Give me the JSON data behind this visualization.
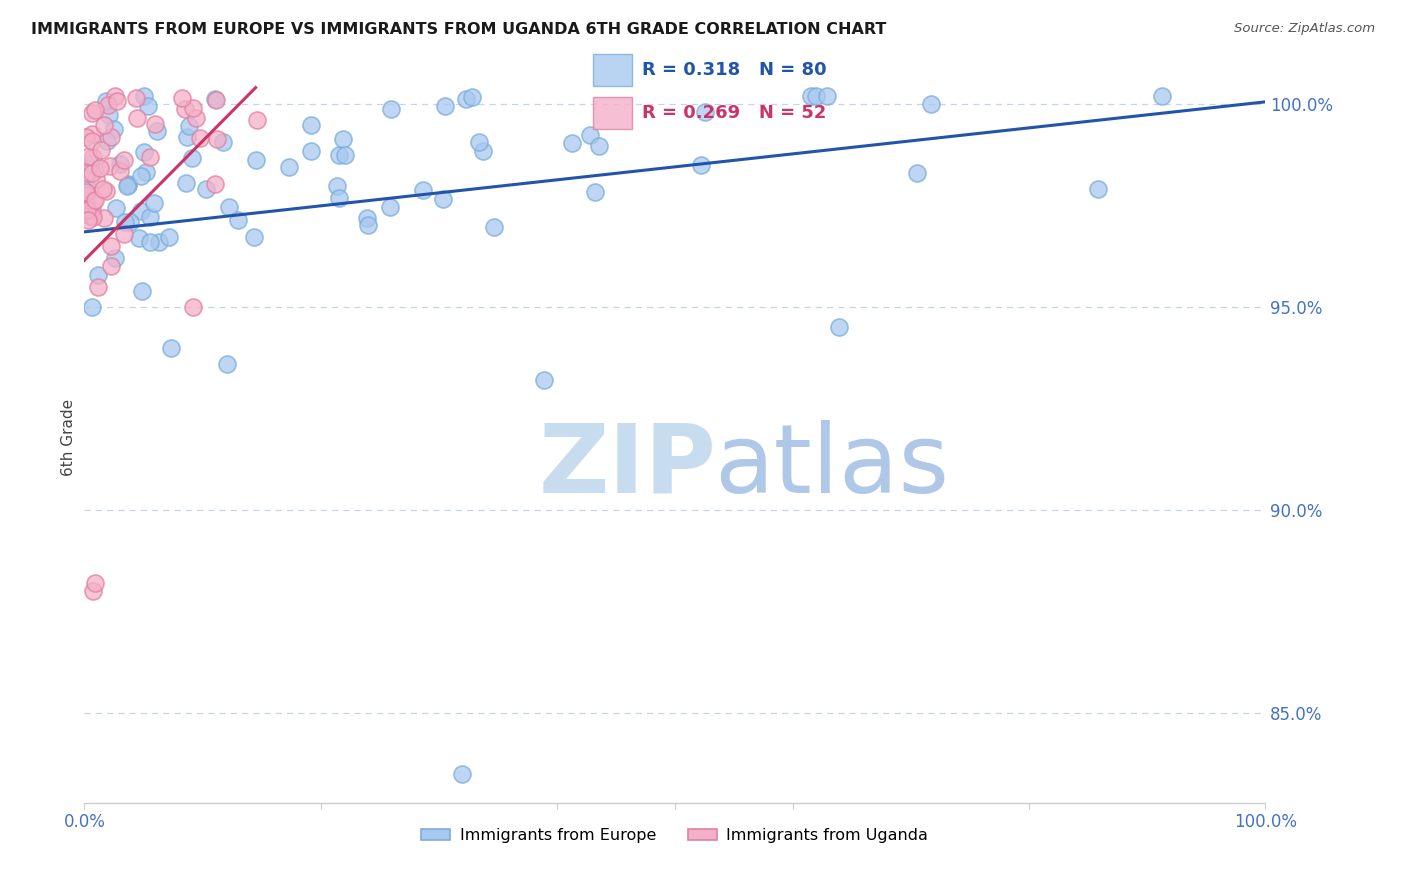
{
  "title": "IMMIGRANTS FROM EUROPE VS IMMIGRANTS FROM UGANDA 6TH GRADE CORRELATION CHART",
  "source": "Source: ZipAtlas.com",
  "ylabel": "6th Grade",
  "xmin": 0.0,
  "xmax": 1.0,
  "ymin": 0.828,
  "ymax": 1.008,
  "ytick_vals": [
    0.85,
    0.9,
    0.95,
    1.0
  ],
  "ytick_labels": [
    "85.0%",
    "90.0%",
    "95.0%",
    "100.0%"
  ],
  "legend_blue_r": "0.318",
  "legend_blue_n": "80",
  "legend_pink_r": "0.269",
  "legend_pink_n": "52",
  "blue_color": "#a8c8f0",
  "blue_edge": "#7aadd8",
  "pink_color": "#f4b0c8",
  "pink_edge": "#e080a0",
  "trendline_blue_color": "#2255aa",
  "trendline_pink_color": "#cc3366",
  "blue_trendline_x0": 0.0,
  "blue_trendline_x1": 1.0,
  "blue_trendline_y0": 0.9685,
  "blue_trendline_y1": 1.0005,
  "pink_trendline_x0": 0.0,
  "pink_trendline_x1": 0.145,
  "pink_trendline_y0": 0.9615,
  "pink_trendline_y1": 1.004,
  "watermark_zip": "ZIP",
  "watermark_atlas": "atlas",
  "watermark_color_zip": "#c8dcf0",
  "watermark_color_atlas": "#b0c8e8",
  "background_color": "#ffffff",
  "grid_color": "#c8d4e8",
  "spine_color": "#cccccc",
  "tick_color": "#4472c4",
  "legend_bg": "#edf2fc",
  "legend_border": "#c0ccdd"
}
